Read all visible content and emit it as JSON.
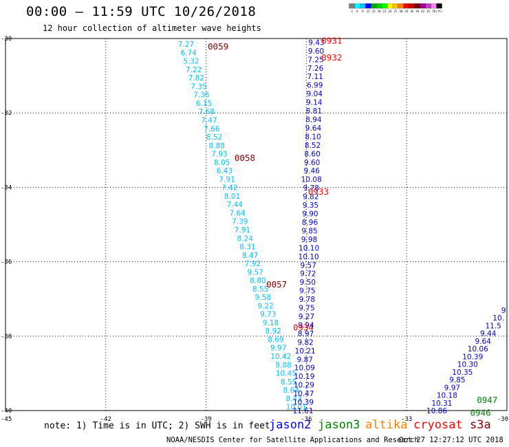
{
  "header": {
    "title": "00:00 – 11:59 UTC 10/26/2018",
    "subtitle": "12 hour collection of altimeter wave heights"
  },
  "colorbar": {
    "colors": [
      "#808080",
      "#00ffff",
      "#00bfff",
      "#0000ff",
      "#00a800",
      "#00d000",
      "#00ff00",
      "#ffff00",
      "#ffc000",
      "#ff8000",
      "#ff0000",
      "#c80000",
      "#800000",
      "#a000a0",
      "#c040c0",
      "#ff80ff",
      "#000000"
    ],
    "labels": [
      "3",
      "6",
      "9",
      "12",
      "15",
      "18",
      "21",
      "24",
      "27",
      "30",
      "33",
      "36",
      "39",
      "42",
      "45",
      "70",
      "(ft)"
    ]
  },
  "axes": {
    "lat_labels": [
      "-30",
      "-32",
      "-34",
      "-36",
      "-38",
      "-40"
    ],
    "lon_labels": [
      "-45",
      "-42",
      "-39",
      "-36",
      "-33",
      "-30"
    ],
    "lat_values": [
      -30,
      -32,
      -34,
      -36,
      -38,
      -40
    ],
    "lon_values": [
      -45,
      -42,
      -39,
      -36,
      -33,
      -30
    ]
  },
  "tracks": [
    {
      "satellite": "jason2",
      "color": "#00bfff",
      "start": [
        -39.6,
        -30.15
      ],
      "end": [
        -36.3,
        -39.9
      ],
      "values": [
        "7.27",
        "6.74",
        "5.32",
        "7.22",
        "7.82",
        "7.35",
        "7.36",
        "6.15",
        "7.68",
        "7.47",
        "7.66",
        "8.52",
        "8.88",
        "7.93",
        "8.05",
        "6.43",
        "7.91",
        "7.42",
        "8.01",
        "7.44",
        "7.64",
        "7.39",
        "7.91",
        "8.24",
        "8.31",
        "8.47",
        "7.92",
        "9.57",
        "8.80",
        "8.55",
        "9.58",
        "9.22",
        "9.73",
        "9.18",
        "8.92",
        "8.69",
        "9.97",
        "10.42",
        "8.88",
        "10.45",
        "8.55",
        "8.64",
        "8.43",
        "10.01"
      ]
    },
    {
      "satellite": "jason2",
      "color": "#0000cc",
      "start": [
        -35.7,
        -30.1
      ],
      "end": [
        -36.1,
        -40.0
      ],
      "values": [
        "9.43",
        "9.60",
        "7.25",
        "7.26",
        "7.11",
        "6.99",
        "9.04",
        "9.14",
        "8.81",
        "8.94",
        "9.64",
        "8.10",
        "8.52",
        "8.60",
        "9.60",
        "9.46",
        "10.08",
        "9.78",
        "9.82",
        "9.35",
        "9.90",
        "8.96",
        "9.85",
        "9.98",
        "10.10",
        "10.10",
        "9.57",
        "9.72",
        "9.50",
        "9.75",
        "9.78",
        "9.75",
        "9.27",
        "9.94",
        "8.97",
        "9.82",
        "10.21",
        "9.87",
        "10.09",
        "10.19",
        "10.29",
        "10.47",
        "10.39",
        "11.61"
      ]
    },
    {
      "satellite": "jason2",
      "color": "#0000cc",
      "start": [
        -30.1,
        -37.3
      ],
      "end": [
        -32.1,
        -40.0
      ],
      "values": [
        "9",
        "10.",
        "11.5",
        "9.44",
        "9.64",
        "10.06",
        "10.39",
        "10.30",
        "10.35",
        "9.85",
        "9.97",
        "10.18",
        "10.31",
        "10.86"
      ]
    }
  ],
  "time_labels": [
    {
      "text": "0059",
      "color": "#800000",
      "lon": -38.95,
      "lat": -30.2
    },
    {
      "text": "0058",
      "color": "#800000",
      "lon": -38.15,
      "lat": -33.2
    },
    {
      "text": "0057",
      "color": "#800000",
      "lon": -37.2,
      "lat": -36.6
    },
    {
      "text": "0931",
      "color": "#ff0000",
      "lon": -35.55,
      "lat": -30.05
    },
    {
      "text": "0932",
      "color": "#ff0000",
      "lon": -35.55,
      "lat": -30.5
    },
    {
      "text": "0933",
      "color": "#ff0000",
      "lon": -35.95,
      "lat": -34.1
    },
    {
      "text": "0934",
      "color": "#ff0000",
      "lon": -36.4,
      "lat": -37.75
    },
    {
      "text": "0947",
      "color": "#008000",
      "lon": -30.9,
      "lat": -39.7
    },
    {
      "text": "0946",
      "color": "#008000",
      "lon": -31.1,
      "lat": -40.05
    }
  ],
  "footer": {
    "note": "note: 1) Time is in UTC; 2) SWH is in feet",
    "satellites": [
      {
        "name": "jason2",
        "color": "#0000ff"
      },
      {
        "name": "jason3",
        "color": "#008000"
      },
      {
        "name": "altika",
        "color": "#ff8000"
      },
      {
        "name": "cryosat",
        "color": "#ff0000"
      },
      {
        "name": "s3a",
        "color": "#800000"
      }
    ],
    "credit": "NOAA/NESDIS Center for Satellite Applications and Research",
    "created": "Oct 27 12:27:12 UTC 2018"
  }
}
